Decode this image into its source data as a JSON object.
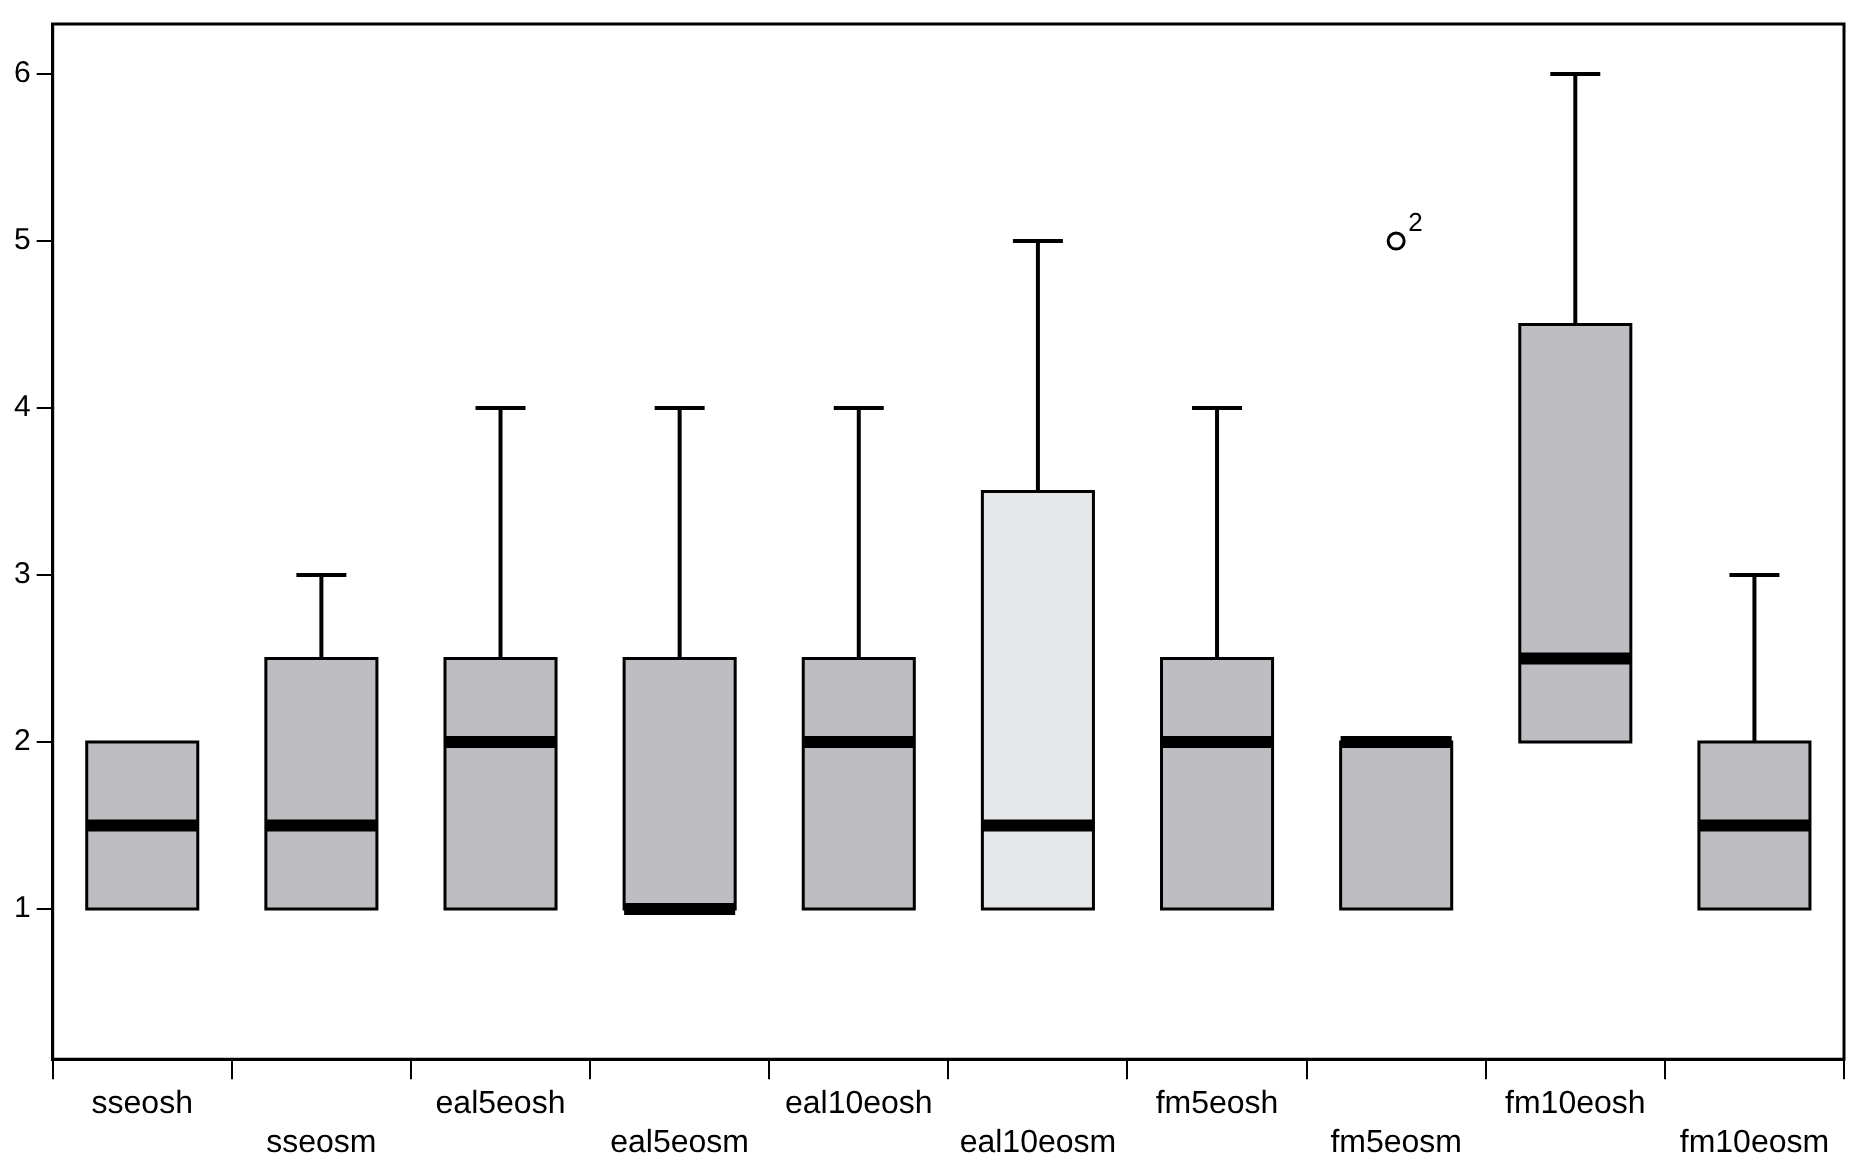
{
  "chart_data": {
    "type": "box",
    "categories": [
      "sseosh",
      "sseosm",
      "eal5eosh",
      "eal5eosm",
      "eal10eosh",
      "eal10eosm",
      "fm5eosh",
      "fm5eosm",
      "fm10eosh",
      "fm10eosm"
    ],
    "boxes": [
      {
        "low": 1,
        "q1": 1,
        "median": 1.5,
        "q3": 2,
        "high": 2
      },
      {
        "low": 1,
        "q1": 1,
        "median": 1.5,
        "q3": 2.5,
        "high": 3
      },
      {
        "low": 1,
        "q1": 1,
        "median": 2,
        "q3": 2.5,
        "high": 4
      },
      {
        "low": 1,
        "q1": 1,
        "median": 1,
        "q3": 2.5,
        "high": 4
      },
      {
        "low": 1,
        "q1": 1,
        "median": 2,
        "q3": 2.5,
        "high": 4
      },
      {
        "low": 1,
        "q1": 1,
        "median": 1.5,
        "q3": 3.5,
        "high": 5
      },
      {
        "low": 1,
        "q1": 1,
        "median": 2,
        "q3": 2.5,
        "high": 4
      },
      {
        "low": 1,
        "q1": 1,
        "median": 2,
        "q3": 2,
        "high": 2,
        "outliers": [
          5
        ]
      },
      {
        "low": 2,
        "q1": 2,
        "median": 2.5,
        "q3": 4.5,
        "high": 6
      },
      {
        "low": 1,
        "q1": 1,
        "median": 1.5,
        "q3": 2,
        "high": 3
      }
    ],
    "colors": [
      "#bebec2",
      "#bebec2",
      "#bebec2",
      "#bebec2",
      "#bebec2",
      "#e6e7e8",
      "#bebec2",
      "#bebec2",
      "#bebec2",
      "#bebec2"
    ],
    "ylim": [
      0.1,
      6.3
    ],
    "yticks": [
      1,
      2,
      3,
      4,
      5,
      6
    ],
    "legend": false,
    "grid": false,
    "annotations": [
      "2"
    ]
  }
}
